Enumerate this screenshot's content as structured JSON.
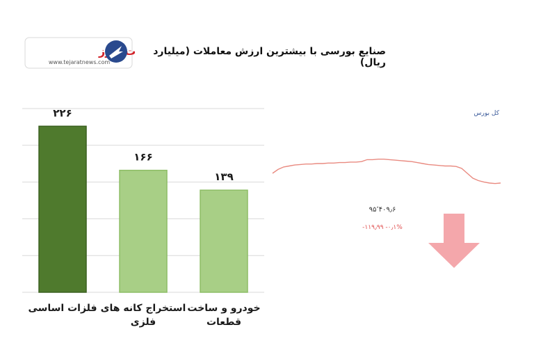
{
  "header": {
    "title": "صنایع بورسی با بیشترین ارزش معاملات  (میلیارد ریال)",
    "logo_name": "تجارت نیوز",
    "logo_url": "www.tejaratnews.com"
  },
  "chart_data": [
    {
      "type": "bar",
      "title": "صنایع بورسی با بیشترین ارزش معاملات  (میلیارد ریال)",
      "categories": [
        [
          "فلزات اساسی"
        ],
        [
          "استخراج کانه های",
          "فلزی"
        ],
        [
          "خودرو و ساخت",
          "قطعات"
        ]
      ],
      "values": [
        226,
        166,
        139
      ],
      "value_labels": [
        "۲۲۶",
        "۱۶۶",
        "۱۳۹"
      ],
      "ylim": [
        0,
        250
      ],
      "grid": true,
      "colors": [
        "#4f7a2d",
        "#a8cf86",
        "#a8cf86"
      ],
      "bar_edge_colors": [
        "#3c6120",
        "#8dbd66",
        "#8dbd66"
      ]
    },
    {
      "type": "line",
      "label": "کل بورس",
      "values": [
        0.3,
        0.38,
        0.43,
        0.45,
        0.47,
        0.48,
        0.49,
        0.49,
        0.5,
        0.5,
        0.51,
        0.51,
        0.52,
        0.52,
        0.53,
        0.53,
        0.54,
        0.58,
        0.58,
        0.59,
        0.59,
        0.58,
        0.57,
        0.56,
        0.55,
        0.54,
        0.52,
        0.5,
        0.48,
        0.47,
        0.46,
        0.45,
        0.45,
        0.44,
        0.4,
        0.3,
        0.2,
        0.15,
        0.12,
        0.1,
        0.09,
        0.1
      ],
      "color": "#e98a80",
      "index_value": "۹۵٬۴۰۹٫۶",
      "change": "-۱۱۹٫۹۹",
      "change_pct": "-۰٫۱%",
      "change_color": "#e05050",
      "arrow": "down",
      "arrow_color": "#f4a7ab"
    }
  ]
}
